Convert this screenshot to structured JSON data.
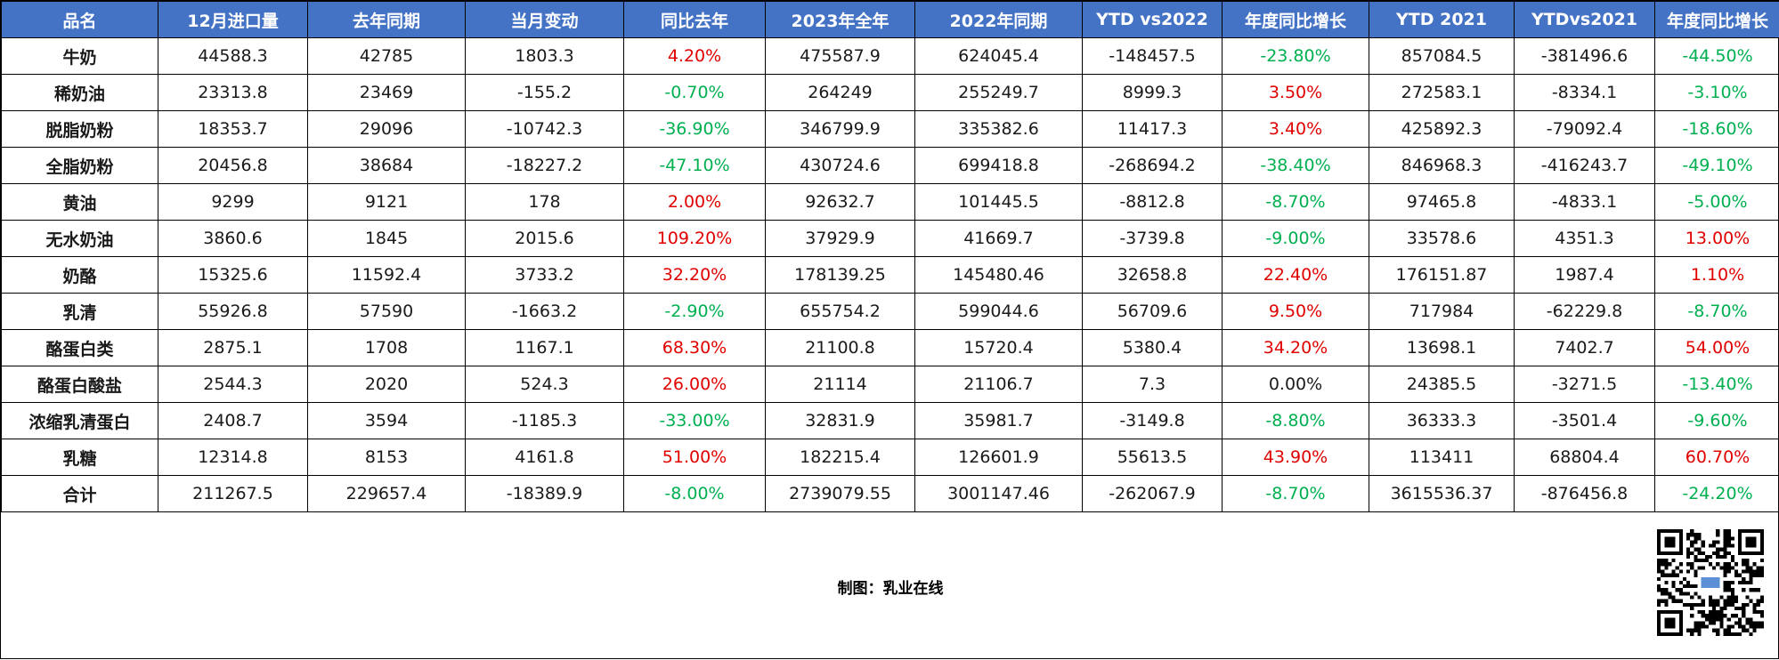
{
  "headers": [
    "品名",
    "12月进口量",
    "去年同期",
    "当月变动",
    "同比去年",
    "2023年全年",
    "2022年同期",
    "YTD vs2022",
    "年度同比增长",
    "YTD 2021",
    "YTDvs2021",
    "年度同比增长"
  ],
  "rows": [
    [
      "牛奶",
      "44588.3",
      "42785",
      "1803.3",
      "4.20%",
      "475587.9",
      "624045.4",
      "-148457.5",
      "-23.80%",
      "857084.5",
      "-381496.6",
      "-44.50%"
    ],
    [
      "稀奶油",
      "23313.8",
      "23469",
      "-155.2",
      "-0.70%",
      "264249",
      "255249.7",
      "8999.3",
      "3.50%",
      "272583.1",
      "-8334.1",
      "-3.10%"
    ],
    [
      "脱脂奶粉",
      "18353.7",
      "29096",
      "-10742.3",
      "-36.90%",
      "346799.9",
      "335382.6",
      "11417.3",
      "3.40%",
      "425892.3",
      "-79092.4",
      "-18.60%"
    ],
    [
      "全脂奶粉",
      "20456.8",
      "38684",
      "-18227.2",
      "-47.10%",
      "430724.6",
      "699418.8",
      "-268694.2",
      "-38.40%",
      "846968.3",
      "-416243.7",
      "-49.10%"
    ],
    [
      "黄油",
      "9299",
      "9121",
      "178",
      "2.00%",
      "92632.7",
      "101445.5",
      "-8812.8",
      "-8.70%",
      "97465.8",
      "-4833.1",
      "-5.00%"
    ],
    [
      "无水奶油",
      "3860.6",
      "1845",
      "2015.6",
      "109.20%",
      "37929.9",
      "41669.7",
      "-3739.8",
      "-9.00%",
      "33578.6",
      "4351.3",
      "13.00%"
    ],
    [
      "奶酪",
      "15325.6",
      "11592.4",
      "3733.2",
      "32.20%",
      "178139.25",
      "145480.46",
      "32658.8",
      "22.40%",
      "176151.87",
      "1987.4",
      "1.10%"
    ],
    [
      "乳清",
      "55926.8",
      "57590",
      "-1663.2",
      "-2.90%",
      "655754.2",
      "599044.6",
      "56709.6",
      "9.50%",
      "717984",
      "-62229.8",
      "-8.70%"
    ],
    [
      "酪蛋白类",
      "2875.1",
      "1708",
      "1167.1",
      "68.30%",
      "21100.8",
      "15720.4",
      "5380.4",
      "34.20%",
      "13698.1",
      "7402.7",
      "54.00%"
    ],
    [
      "酪蛋白酸盐",
      "2544.3",
      "2020",
      "524.3",
      "26.00%",
      "21114",
      "21106.7",
      "7.3",
      "0.00%",
      "24385.5",
      "-3271.5",
      "-13.40%"
    ],
    [
      "浓缩乳清蛋白",
      "2408.7",
      "3594",
      "-1185.3",
      "-33.00%",
      "32831.9",
      "35981.7",
      "-3149.8",
      "-8.80%",
      "36333.3",
      "-3501.4",
      "-9.60%"
    ],
    [
      "乳糖",
      "12314.8",
      "8153",
      "4161.8",
      "51.00%",
      "182215.4",
      "126601.9",
      "55613.5",
      "43.90%",
      "113411",
      "68804.4",
      "60.70%"
    ],
    [
      "合计",
      "211267.5",
      "229657.4",
      "-18389.9",
      "-8.00%",
      "2739079.55",
      "3001147.46",
      "-262067.9",
      "-8.70%",
      "3615536.37",
      "-876456.8",
      "-24.20%"
    ]
  ],
  "colors": {
    "header_bg": "#4472c4",
    "header_text": "#ffffff",
    "negative": "#00b050",
    "positive": "#e00000"
  },
  "footer": {
    "credit": "制图：乳业在线",
    "qr_icon": "qr-code-icon"
  }
}
